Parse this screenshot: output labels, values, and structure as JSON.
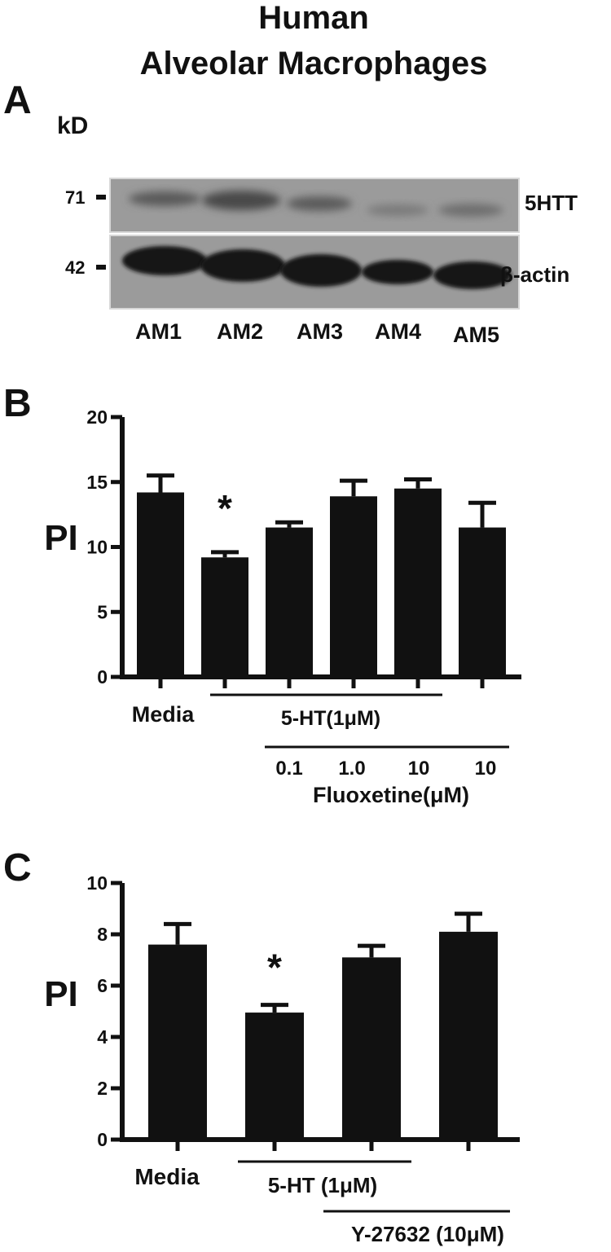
{
  "title": {
    "line1": "Human",
    "line2": "Alveolar Macrophages"
  },
  "panel_a": {
    "letter": "A",
    "unit": "kD",
    "markers": [
      "71",
      "42"
    ],
    "bands": [
      "5HTT",
      "β-actin"
    ],
    "lanes": [
      "AM1",
      "AM2",
      "AM3",
      "AM4",
      "AM5"
    ]
  },
  "chart_data": [
    {
      "panel": "B",
      "type": "bar",
      "ylabel": "PI",
      "ylim": [
        0,
        20
      ],
      "yticks": [
        "0",
        "5",
        "10",
        "15",
        "20"
      ],
      "values": [
        14.2,
        9.2,
        11.5,
        13.9,
        14.5,
        11.5
      ],
      "errors": [
        1.3,
        0.4,
        0.4,
        1.2,
        0.7,
        1.9
      ],
      "colors": {
        "bar": "#111111"
      },
      "annotations": [
        {
          "bar_index": 1,
          "text": "*"
        }
      ],
      "labels": {
        "media": "Media",
        "group1": "5-HT(1μM)",
        "doses": [
          "0.1",
          "1.0",
          "10",
          "10"
        ],
        "group2": "Fluoxetine(μM)"
      }
    },
    {
      "panel": "C",
      "type": "bar",
      "ylabel": "PI",
      "ylim": [
        0,
        10
      ],
      "yticks": [
        "0",
        "2",
        "4",
        "6",
        "8",
        "10"
      ],
      "values": [
        7.6,
        4.95,
        7.1,
        8.1
      ],
      "errors": [
        0.8,
        0.3,
        0.45,
        0.7
      ],
      "colors": {
        "bar": "#111111"
      },
      "annotations": [
        {
          "bar_index": 1,
          "text": "*"
        }
      ],
      "labels": {
        "media": "Media",
        "group1": "5-HT (1μM)",
        "group2": "Y-27632 (10μM)"
      }
    }
  ]
}
